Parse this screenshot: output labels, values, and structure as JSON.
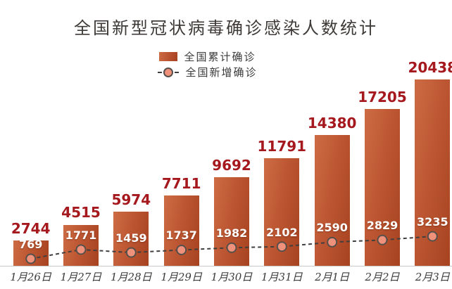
{
  "title": "全国新型冠状病毒确诊感染人数统计",
  "legend": {
    "position": "top",
    "items": [
      {
        "label": "全国累计确诊",
        "marker": "bar-swatch"
      },
      {
        "label": "全国新增确诊",
        "marker": "dashed-line-circle"
      }
    ]
  },
  "chart_data": {
    "type": "bar",
    "title": "全国新型冠状病毒确诊感染人数统计",
    "categories": [
      "1月26日",
      "1月27日",
      "1月28日",
      "1月29日",
      "1月30日",
      "1月31日",
      "2月1日",
      "2月2日",
      "2月3日"
    ],
    "series": [
      {
        "name": "全国累计确诊",
        "type": "bar",
        "values": [
          2744,
          4515,
          5974,
          7711,
          9692,
          11791,
          14380,
          17205,
          20438
        ]
      },
      {
        "name": "全国新增确诊",
        "type": "line",
        "values": [
          769,
          1771,
          1459,
          1737,
          1982,
          2102,
          2590,
          2829,
          3235
        ]
      }
    ],
    "xlabel": "",
    "ylabel": "",
    "ylim": [
      0,
      21000
    ],
    "grid": false,
    "legend_position": "top-center"
  },
  "colors": {
    "background": "#ffffff",
    "bar_gradient_light": "#cd6c44",
    "bar_gradient_mid": "#bd5733",
    "bar_gradient_dark": "#a74220",
    "bar_value_label": "#a5191e",
    "inner_value_label": "#ffffff",
    "line": "#3f3f3f",
    "marker_fill": "#f0917b",
    "marker_stroke": "#55504b",
    "title_text": "#3e3a38",
    "legend_text": "#3a3a3a",
    "date_text": "#3b3b3b",
    "axis_line": "#c9c9c9"
  }
}
